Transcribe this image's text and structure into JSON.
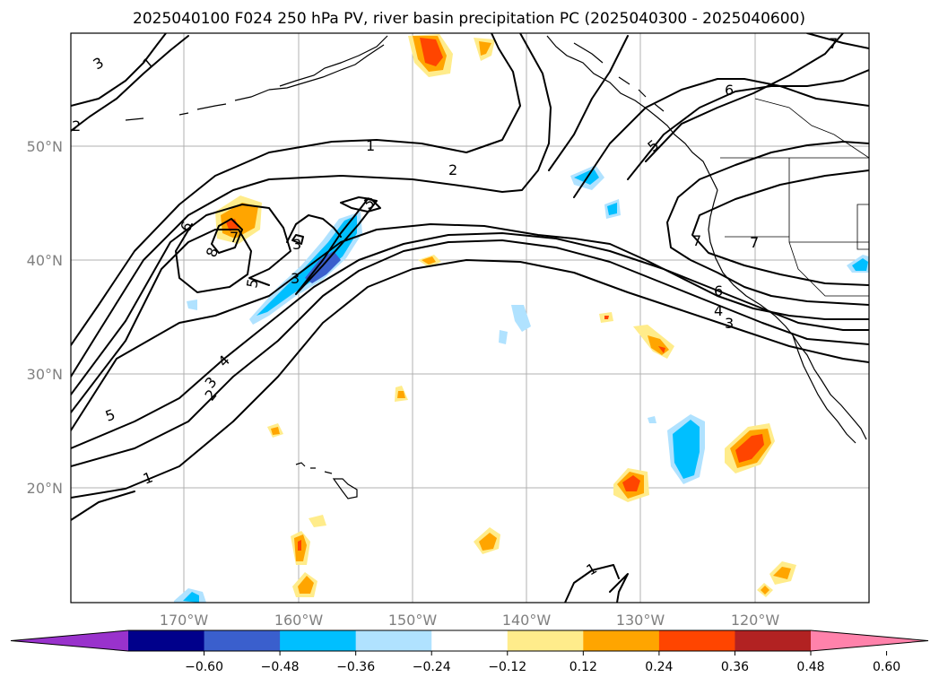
{
  "title": "2025040100 F024 250 hPa PV, river basin precipitation PC (2025040300 - 2025040600)",
  "lat_labels": [
    "50°N",
    "40°N",
    "30°N",
    "20°N"
  ],
  "lon_labels": [
    "170°W",
    "160°W",
    "150°W",
    "140°W",
    "130°W",
    "120°W"
  ],
  "colorbar": {
    "ticks": [
      "−0.60",
      "−0.48",
      "−0.36",
      "−0.24",
      "−0.12",
      "0.12",
      "0.24",
      "0.36",
      "0.48",
      "0.60"
    ],
    "colors": [
      "#9932cc",
      "#00008b",
      "#3a5fcd",
      "#00bfff",
      "#b0e2ff",
      "#ffffff",
      "#ffec8b",
      "#ffa500",
      "#ff4500",
      "#b22222",
      "#ff82ab"
    ]
  },
  "contour_labels": [
    "3",
    "1",
    "2",
    "1",
    "2",
    "5",
    "6",
    "7",
    "6",
    "8",
    "5",
    "7",
    "3",
    "3",
    "5",
    "2",
    "4",
    "3",
    "7",
    "7",
    "6",
    "4",
    "3",
    "5",
    "1",
    "1"
  ]
}
